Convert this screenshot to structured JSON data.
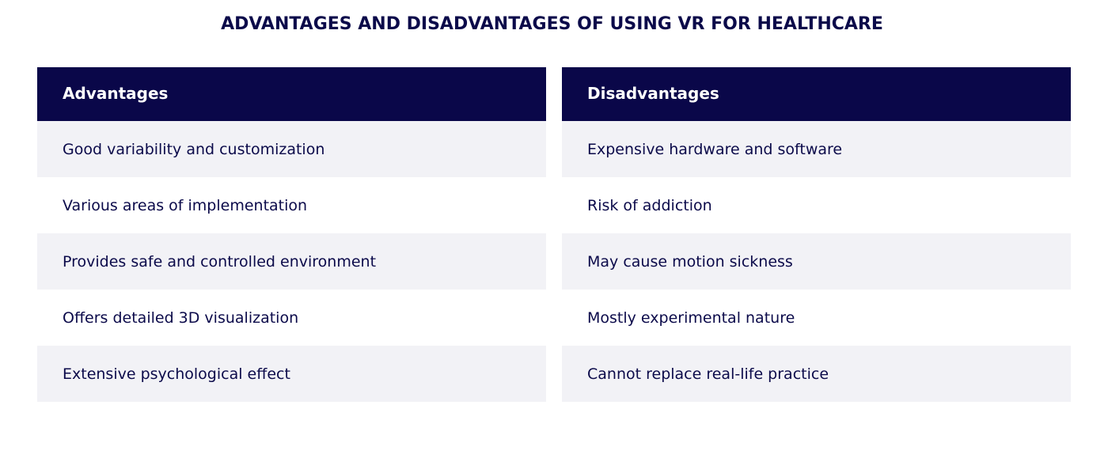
{
  "title": "ADVANTAGES AND DISADVANTAGES OF USING VR FOR HEALTHCARE",
  "columns": [
    {
      "header": "Advantages",
      "items": [
        "Good variability and customization",
        "Various areas of implementation",
        "Provides safe and controlled environment",
        "Offers detailed 3D visualization",
        "Extensive psychological effect"
      ]
    },
    {
      "header": "Disadvantages",
      "items": [
        "Expensive hardware and software",
        "Risk of addiction",
        "May cause motion sickness",
        "Mostly experimental nature",
        "Cannot replace real-life practice"
      ]
    }
  ]
}
